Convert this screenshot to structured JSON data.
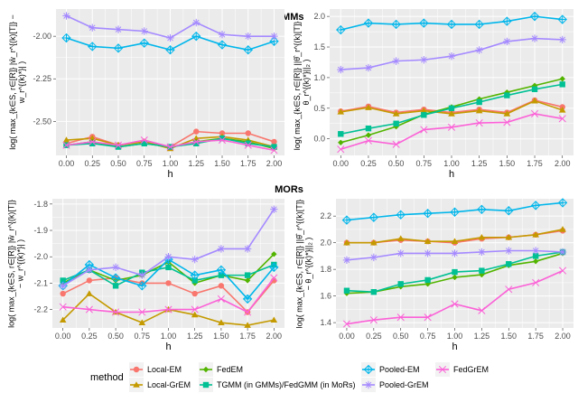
{
  "chart_data": [
    {
      "type": "line",
      "group_title": "GMMs",
      "title": "",
      "xlabel": "h",
      "ylabel": "log( max_{k∈S, r∈[R]} |ŵ_r^{(k)[T]} − w_r^{(k)*}| )",
      "x": [
        0,
        0.25,
        0.5,
        0.75,
        1,
        1.25,
        1.5,
        1.75,
        2
      ],
      "xticks": [
        "0.00",
        "0.25",
        "0.50",
        "0.75",
        "1.00",
        "1.25",
        "1.50",
        "1.75",
        "2.00"
      ],
      "ylim": [
        -2.7,
        -1.84
      ],
      "yticks": [
        -2.5,
        -2.25,
        -2.0
      ],
      "ytick_labels": [
        "-2.50",
        "-2.25",
        "-2.00"
      ],
      "grid": true,
      "series": [
        {
          "name": "Local-EM",
          "values": [
            -2.63,
            -2.59,
            -2.64,
            -2.62,
            -2.65,
            -2.56,
            -2.57,
            -2.57,
            -2.62
          ]
        },
        {
          "name": "Local-GrEM",
          "values": [
            -2.61,
            -2.6,
            -2.64,
            -2.62,
            -2.66,
            -2.6,
            -2.59,
            -2.61,
            -2.65
          ]
        },
        {
          "name": "FedEM",
          "values": [
            -2.64,
            -2.62,
            -2.65,
            -2.63,
            -2.65,
            -2.62,
            -2.6,
            -2.62,
            -2.66
          ]
        },
        {
          "name": "TGMM (in GMMs)/FedGMM (in MoRs)",
          "values": [
            -2.64,
            -2.63,
            -2.65,
            -2.63,
            -2.65,
            -2.63,
            -2.6,
            -2.63,
            -2.65
          ]
        },
        {
          "name": "Pooled-EM",
          "values": [
            -2.01,
            -2.06,
            -2.07,
            -2.04,
            -2.08,
            -2.0,
            -2.05,
            -2.08,
            -2.03
          ]
        },
        {
          "name": "Pooled-GrEM",
          "values": [
            -1.88,
            -1.95,
            -1.96,
            -1.97,
            -2.01,
            -1.92,
            -1.99,
            -2.0,
            -2.0
          ]
        },
        {
          "name": "FedGrEM",
          "values": [
            -2.64,
            -2.62,
            -2.64,
            -2.61,
            -2.65,
            -2.62,
            -2.61,
            -2.64,
            -2.67
          ]
        }
      ]
    },
    {
      "type": "line",
      "title": "",
      "xlabel": "h",
      "ylabel": "log( max_{k∈S, r∈[R]} ||θ̂_r^{(k)[T]} − θ_r^{(k)*}||₂ )",
      "x": [
        0,
        0.25,
        0.5,
        0.75,
        1,
        1.25,
        1.5,
        1.75,
        2
      ],
      "xticks": [
        "0.00",
        "0.25",
        "0.50",
        "0.75",
        "1.00",
        "1.25",
        "1.50",
        "1.75",
        "2.00"
      ],
      "ylim": [
        -0.27,
        2.12
      ],
      "yticks": [
        0,
        0.5,
        1,
        1.5,
        2
      ],
      "ytick_labels": [
        "0.0",
        "0.5",
        "1.0",
        "1.5",
        "2.0"
      ],
      "grid": true,
      "series": [
        {
          "name": "Local-EM",
          "values": [
            0.45,
            0.53,
            0.43,
            0.48,
            0.43,
            0.48,
            0.43,
            0.63,
            0.52
          ]
        },
        {
          "name": "Local-GrEM",
          "values": [
            0.44,
            0.51,
            0.41,
            0.46,
            0.41,
            0.46,
            0.41,
            0.62,
            0.47
          ]
        },
        {
          "name": "FedEM",
          "values": [
            -0.06,
            0.06,
            0.2,
            0.4,
            0.52,
            0.65,
            0.76,
            0.87,
            0.98
          ]
        },
        {
          "name": "TGMM (in GMMs)/FedGMM (in MoRs)",
          "values": [
            0.08,
            0.17,
            0.25,
            0.39,
            0.5,
            0.6,
            0.71,
            0.81,
            0.89
          ]
        },
        {
          "name": "Pooled-EM",
          "values": [
            1.78,
            1.89,
            1.87,
            1.89,
            1.87,
            1.87,
            1.92,
            2.0,
            1.95
          ]
        },
        {
          "name": "Pooled-GrEM",
          "values": [
            1.13,
            1.16,
            1.27,
            1.29,
            1.35,
            1.45,
            1.59,
            1.64,
            1.62
          ]
        },
        {
          "name": "FedGrEM",
          "values": [
            -0.17,
            -0.03,
            -0.09,
            0.15,
            0.19,
            0.26,
            0.27,
            0.41,
            0.33
          ]
        }
      ]
    },
    {
      "type": "line",
      "group_title": "MORs",
      "title": "",
      "xlabel": "h",
      "ylabel": "log( max_{k∈S, r∈[R]} |ŵ_r^{(k)[T]} − w_r^{(k)*}| )",
      "x": [
        0,
        0.25,
        0.5,
        0.75,
        1,
        1.25,
        1.5,
        1.75,
        2
      ],
      "xticks": [
        "0.00",
        "0.25",
        "0.50",
        "0.75",
        "1.00",
        "1.25",
        "1.50",
        "1.75",
        "2.00"
      ],
      "ylim": [
        -2.27,
        -1.78
      ],
      "yticks": [
        -2.2,
        -2.1,
        -2.0,
        -1.9,
        -1.8
      ],
      "ytick_labels": [
        "-2.2",
        "-2.1",
        "-2.0",
        "-1.9",
        "-1.8"
      ],
      "grid": true,
      "series": [
        {
          "name": "Local-EM",
          "values": [
            -2.14,
            -2.09,
            -2.08,
            -2.1,
            -2.1,
            -2.14,
            -2.11,
            -2.21,
            -2.09
          ]
        },
        {
          "name": "Local-GrEM",
          "values": [
            -2.24,
            -2.14,
            -2.21,
            -2.25,
            -2.2,
            -2.22,
            -2.25,
            -2.26,
            -2.24
          ]
        },
        {
          "name": "FedEM",
          "values": [
            -2.1,
            -2.05,
            -2.09,
            -2.07,
            -2.02,
            -2.1,
            -2.07,
            -2.09,
            -1.99
          ]
        },
        {
          "name": "TGMM (in GMMs)/FedGMM (in MoRs)",
          "values": [
            -2.09,
            -2.05,
            -2.11,
            -2.06,
            -2.04,
            -2.09,
            -2.07,
            -2.07,
            -2.03
          ]
        },
        {
          "name": "Pooled-EM",
          "values": [
            -2.11,
            -2.03,
            -2.08,
            -2.11,
            -2.01,
            -2.07,
            -2.05,
            -2.16,
            -2.04
          ]
        },
        {
          "name": "Pooled-GrEM",
          "values": [
            -2.11,
            -2.05,
            -2.04,
            -2.07,
            -2.0,
            -2.01,
            -1.97,
            -1.97,
            -1.82
          ]
        },
        {
          "name": "FedGrEM",
          "values": [
            -2.19,
            -2.2,
            -2.21,
            -2.21,
            -2.2,
            -2.2,
            -2.16,
            -2.21,
            -2.08
          ]
        }
      ]
    },
    {
      "type": "line",
      "title": "",
      "xlabel": "h",
      "ylabel": "log( max_{k∈S, r∈[R]} ||θ̂_r^{(k)[T]} − θ_r^{(k)*}||₂ )",
      "x": [
        0,
        0.25,
        0.5,
        0.75,
        1,
        1.25,
        1.5,
        1.75,
        2
      ],
      "xticks": [
        "0.00",
        "0.25",
        "0.50",
        "0.75",
        "1.00",
        "1.25",
        "1.50",
        "1.75",
        "2.00"
      ],
      "ylim": [
        1.36,
        2.33
      ],
      "yticks": [
        1.4,
        1.6,
        1.8,
        2.0,
        2.2
      ],
      "ytick_labels": [
        "1.4",
        "1.6",
        "1.8",
        "2.0",
        "2.2"
      ],
      "grid": true,
      "series": [
        {
          "name": "Local-EM",
          "values": [
            2.0,
            2.0,
            2.02,
            2.01,
            2.0,
            2.03,
            2.04,
            2.06,
            2.09
          ]
        },
        {
          "name": "Local-GrEM",
          "values": [
            2.0,
            2.0,
            2.03,
            2.01,
            2.01,
            2.04,
            2.04,
            2.06,
            2.1
          ]
        },
        {
          "name": "FedEM",
          "values": [
            1.62,
            1.63,
            1.67,
            1.69,
            1.74,
            1.76,
            1.83,
            1.86,
            1.92
          ]
        },
        {
          "name": "TGMM (in GMMs)/FedGMM (in MoRs)",
          "values": [
            1.64,
            1.63,
            1.69,
            1.72,
            1.78,
            1.79,
            1.84,
            1.9,
            1.93
          ]
        },
        {
          "name": "Pooled-EM",
          "values": [
            2.17,
            2.19,
            2.21,
            2.22,
            2.23,
            2.25,
            2.24,
            2.28,
            2.3
          ]
        },
        {
          "name": "Pooled-GrEM",
          "values": [
            1.87,
            1.89,
            1.92,
            1.92,
            1.92,
            1.93,
            1.94,
            1.94,
            1.93
          ]
        },
        {
          "name": "FedGrEM",
          "values": [
            1.39,
            1.42,
            1.44,
            1.44,
            1.54,
            1.49,
            1.65,
            1.7,
            1.79
          ]
        }
      ]
    }
  ],
  "legend": {
    "title": "method",
    "placement": "bottom",
    "entries": [
      {
        "name": "Local-EM",
        "color": "#F8766D",
        "shape": "circle"
      },
      {
        "name": "Local-GrEM",
        "color": "#C49A00",
        "shape": "triangle"
      },
      {
        "name": "FedEM",
        "color": "#53B400",
        "shape": "diamond"
      },
      {
        "name": "TGMM (in GMMs)/FedGMM (in MoRs)",
        "color": "#00C094",
        "shape": "square"
      },
      {
        "name": "Pooled-EM",
        "color": "#00B6EB",
        "shape": "diamond-plus"
      },
      {
        "name": "Pooled-GrEM",
        "color": "#A58AFF",
        "shape": "asterisk"
      },
      {
        "name": "FedGrEM",
        "color": "#FB61D7",
        "shape": "x"
      }
    ]
  }
}
